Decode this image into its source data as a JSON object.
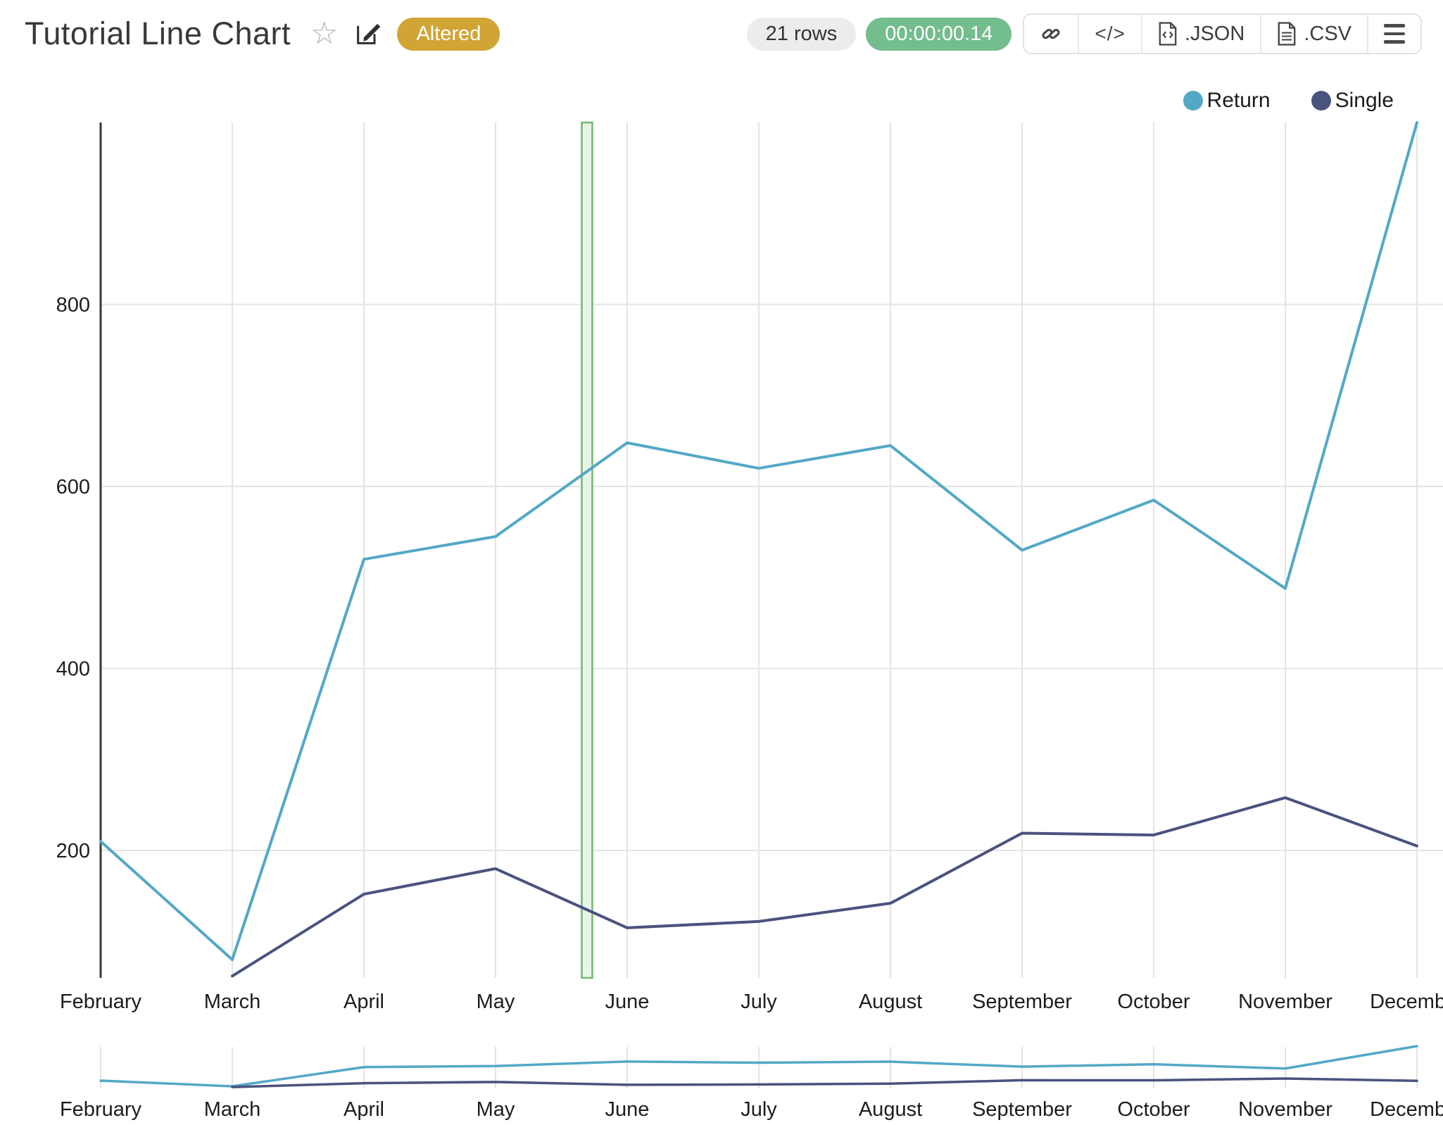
{
  "header": {
    "title": "Tutorial Line Chart",
    "altered_badge": "Altered",
    "rows_badge": "21 rows",
    "timer_badge": "00:00:00.14"
  },
  "toolbar": {
    "code_icon_text": "</>",
    "json_label": ".JSON",
    "csv_label": ".CSV"
  },
  "legend": [
    {
      "label": "Return",
      "color": "#53a8c6"
    },
    {
      "label": "Single",
      "color": "#4a527e"
    }
  ],
  "chart_data": {
    "type": "line",
    "x": [
      "February",
      "March",
      "April",
      "May",
      "June",
      "July",
      "August",
      "September",
      "October",
      "November",
      "December"
    ],
    "series": [
      {
        "name": "Return",
        "color": "#53a8c6",
        "values": [
          210,
          80,
          520,
          545,
          648,
          620,
          645,
          530,
          585,
          488,
          1000
        ]
      },
      {
        "name": "Single",
        "color": "#4a527e",
        "values": [
          null,
          62,
          152,
          180,
          115,
          122,
          142,
          219,
          217,
          258,
          205
        ]
      }
    ],
    "ylim": [
      60,
      1000
    ],
    "yticks": [
      200,
      400,
      600,
      800
    ],
    "grid": "on",
    "legend_position": "top-right",
    "highlight_band": {
      "between": [
        "May",
        "June"
      ],
      "start_month_index": 3.655,
      "end_month_index": 3.735
    },
    "overview_strip": "same series repeated in compressed brush chart below main chart"
  },
  "colors": {
    "grid": "#e4e4e4",
    "axis": "#3a3a3a",
    "tick_label": "#1d1d1d",
    "highlight_fill": "#e9f4e9",
    "highlight_border": "#72b874",
    "badge_gold": "#d0a536",
    "badge_green": "#74bd8d",
    "badge_gray": "#ececec"
  }
}
